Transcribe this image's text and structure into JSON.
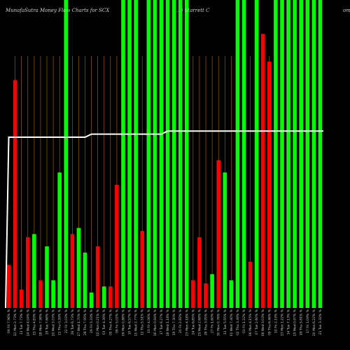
{
  "header": {
    "title": "MunafaSutra  Money Flow  Charts for SCX",
    "company_partial": "...) Starrett C",
    "right_partial": "om"
  },
  "colors": {
    "background": "#000000",
    "inflow": "#ff0000",
    "strong_inflow": "#00ff00",
    "line": "#ffffff",
    "vgrid": "#b36b00"
  },
  "chart_data": {
    "type": "bar",
    "title": "MunafaSutra  Money Flow  Charts for SCX",
    "xlabel": "",
    "ylabel": "",
    "ylim": [
      0,
      100
    ],
    "grid": "vertical",
    "categories": [
      "09 Fri 7.96% %",
      "12 Mon 2.73% %",
      "13 Tue 7.73% %",
      "14 Wed 4.04% %",
      "15 Thu 4.83% %",
      "18 Mon 7.98% %",
      "19 Tue 7.66% %",
      "20 Wed 3.03% %",
      "21 Thu 0.39% %",
      "22 Fri 3.03% %",
      "26 Tue 6.73% %",
      "27 Wed 1.70% %",
      "28 Thu 7.95% %",
      "29 Fri 5.33% %",
      "02 Mon 0.21% %",
      "03 Tue 4.39% %",
      "05 Thu 4.27% %",
      "06 Fri 5.02% %",
      "09 Mon 0.88% %",
      "10 Tue 6.57% %",
      "11 Wed 2.77% %",
      "12 Thu 5.51% %",
      "13 Fri 4.06% %",
      "16 Mon 0.94% %",
      "17 Tue 6.27% %",
      "18 Wed 1.18% %",
      "19 Thu 7.30% %",
      "20 Fri 2.82% %",
      "23 Mon 4.18% %",
      "24 Tue 6.85% %",
      "25 Wed 2.68% %",
      "26 Thu 3.95% %",
      "27 Fri 1.60% %",
      "30 Mon 0.76% %",
      "31 Tue 5.55% %",
      "01 Wed 7.40% %",
      "02 Thu 3.49% %",
      "03 Fri 1.22% %",
      "06 Mon 4.15% %",
      "07 Tue 2.60% %",
      "08 Wed 3.03% %",
      "09 Thu 6.46% %",
      "10 Fri 2.19% %",
      "13 Mon 1.22% %",
      "14 Tue 7.13% %",
      "15 Wed 0.97% %",
      "16 Thu 5.81% %",
      "17 Fri 1.09% %",
      "20 Mon 6.22% %",
      "21 Tue 3.32% %"
    ],
    "series": [
      {
        "color": "#ff0000/#00ff00",
        "values": [
          14,
          74,
          6,
          23,
          24,
          9,
          20,
          9,
          44,
          100,
          24,
          26,
          18,
          5,
          20,
          7,
          7,
          40,
          100,
          100,
          100,
          25,
          100,
          100,
          100,
          100,
          100,
          100,
          100,
          9,
          23,
          8,
          11,
          48,
          44,
          9,
          100,
          100,
          15,
          100,
          89,
          80,
          100,
          100,
          100,
          100,
          100,
          100,
          100,
          100
        ],
        "colors": [
          "r",
          "r",
          "r",
          "r",
          "g",
          "r",
          "g",
          "g",
          "g",
          "g",
          "r",
          "g",
          "g",
          "g",
          "r",
          "g",
          "r",
          "r",
          "g",
          "g",
          "g",
          "r",
          "g",
          "g",
          "g",
          "g",
          "g",
          "g",
          "g",
          "r",
          "r",
          "r",
          "g",
          "r",
          "g",
          "g",
          "g",
          "g",
          "r",
          "g",
          "r",
          "r",
          "g",
          "g",
          "g",
          "g",
          "g",
          "g",
          "g",
          "g"
        ]
      },
      {
        "color": "#ffffff",
        "values": [
          60,
          60,
          60,
          60,
          60,
          60,
          60,
          60,
          60,
          60,
          60,
          60,
          60,
          61,
          61,
          61,
          61,
          61,
          61,
          61,
          61,
          61,
          61,
          61,
          61,
          62,
          62,
          62,
          62,
          62,
          62,
          62,
          62,
          62,
          62,
          62,
          62,
          62,
          62,
          62,
          62,
          62,
          62,
          62,
          62,
          62,
          62,
          62,
          62,
          62
        ]
      }
    ]
  }
}
